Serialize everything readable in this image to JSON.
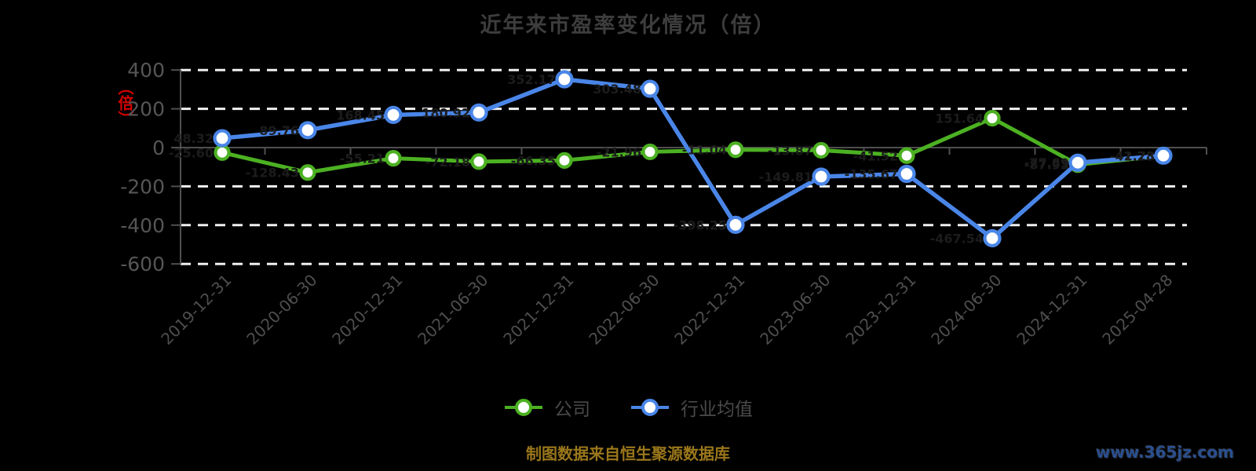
{
  "title": "近年来市盈率变化情况（倍）",
  "y_axis": {
    "unit_label": "（倍）",
    "ticks": [
      400,
      200,
      0,
      -200,
      -400,
      -600
    ]
  },
  "legend": [
    {
      "id": "company",
      "label": "公司",
      "color": "#4cb122"
    },
    {
      "id": "industry-average",
      "label": "行业均值",
      "color": "#4a86e8"
    }
  ],
  "footer": {
    "source_text": "制图数据来自恒生聚源数据库",
    "watermark": "www.365jz.com"
  },
  "colors": {
    "background": "#000000",
    "title_text": "#3d3d3d",
    "axis_line": "#4f4f4f",
    "gridline": "#f0f0f0",
    "tick_label": "#565656",
    "x_label": "#4e4e4e",
    "data_label": "#1c1c1c",
    "unit_label_red": "#d40000",
    "company_green": "#4cb122",
    "industry_blue": "#4a86e8",
    "marker_fill": "#ffffff",
    "footer_gold": "#9a771b",
    "watermark_blue": "#2a4f8f"
  },
  "chart_data": {
    "type": "line",
    "title": "近年来市盈率变化情况（倍）",
    "categories": [
      "2019-12-31",
      "2020-06-30",
      "2020-12-31",
      "2021-06-30",
      "2021-12-31",
      "2022-06-30",
      "2022-12-31",
      "2023-06-30",
      "2023-12-31",
      "2024-06-30",
      "2024-12-31",
      "2025-04-28"
    ],
    "series": [
      {
        "name": "公司",
        "color": "#4cb122",
        "values": [
          -25.6,
          -128.43,
          -55.21,
          -72.18,
          -66.35,
          -21.96,
          -11.04,
          -13.87,
          -41.52,
          151.64,
          -87.93,
          -42.28
        ]
      },
      {
        "name": "行业均值",
        "color": "#4a86e8",
        "values": [
          48.32,
          89.76,
          168.45,
          180.92,
          352.17,
          303.48,
          -398.25,
          -149.81,
          -135.67,
          -467.54,
          -77.89,
          -41.73
        ]
      }
    ],
    "ylabel": "（倍）",
    "xlabel": "",
    "ylim": [
      -600,
      400
    ],
    "y_ticks": [
      400,
      200,
      0,
      -200,
      -400,
      -600
    ],
    "grid": "dashed-horizontal-white, solid zero axis",
    "legend_position": "bottom",
    "data_labels": "dark gray, nearly invisible on black background"
  }
}
